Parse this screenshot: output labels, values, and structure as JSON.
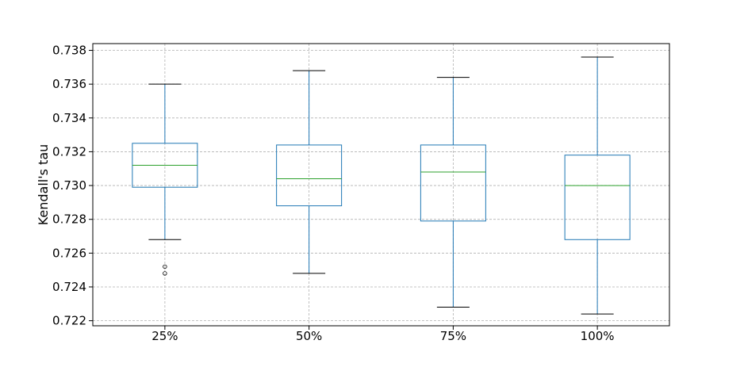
{
  "chart_data": {
    "type": "box",
    "title": "",
    "xlabel": "",
    "ylabel": "Kendall's tau",
    "categories": [
      "25%",
      "50%",
      "75%",
      "100%"
    ],
    "boxes": [
      {
        "category": "25%",
        "whisker_low": 0.7268,
        "q1": 0.7299,
        "median": 0.7312,
        "q3": 0.7325,
        "whisker_high": 0.736,
        "outliers": [
          0.7252,
          0.7248
        ]
      },
      {
        "category": "50%",
        "whisker_low": 0.7248,
        "q1": 0.7288,
        "median": 0.7304,
        "q3": 0.7324,
        "whisker_high": 0.7368,
        "outliers": []
      },
      {
        "category": "75%",
        "whisker_low": 0.7228,
        "q1": 0.7279,
        "median": 0.7308,
        "q3": 0.7324,
        "whisker_high": 0.7364,
        "outliers": []
      },
      {
        "category": "100%",
        "whisker_low": 0.7224,
        "q1": 0.7268,
        "median": 0.73,
        "q3": 0.7318,
        "whisker_high": 0.7376,
        "outliers": []
      }
    ],
    "ylim": [
      0.7217,
      0.7384
    ],
    "yticks": [
      "0.722",
      "0.724",
      "0.726",
      "0.728",
      "0.730",
      "0.732",
      "0.734",
      "0.736",
      "0.738"
    ],
    "grid": true,
    "colors": {
      "box": "#1f77b4",
      "median": "#2ca02c",
      "whisker_cap": "#000000",
      "grid": "#b0b0b0"
    }
  }
}
